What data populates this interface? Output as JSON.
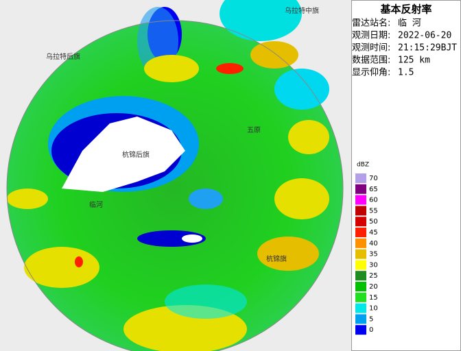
{
  "panel": {
    "title": "基本反射率",
    "info": [
      {
        "label": "雷达站名:",
        "value": "临 河"
      },
      {
        "label": "观测日期:",
        "value": "2022-06-20"
      },
      {
        "label": "观测时间:",
        "value": "21:15:29BJT"
      },
      {
        "label": "数据范围:",
        "value": "125 km"
      },
      {
        "label": "显示仰角:",
        "value": "1.5"
      }
    ]
  },
  "legend": {
    "unit": "dBZ",
    "items": [
      {
        "label": "70",
        "color": "#b4a0e8"
      },
      {
        "label": "65",
        "color": "#800080"
      },
      {
        "label": "60",
        "color": "#ff00ff"
      },
      {
        "label": "55",
        "color": "#c00000"
      },
      {
        "label": "50",
        "color": "#d40000"
      },
      {
        "label": "45",
        "color": "#ff2000"
      },
      {
        "label": "40",
        "color": "#ff9000"
      },
      {
        "label": "35",
        "color": "#e6be00"
      },
      {
        "label": "30",
        "color": "#ffff00"
      },
      {
        "label": "25",
        "color": "#1e8c1e"
      },
      {
        "label": "20",
        "color": "#00c000"
      },
      {
        "label": "15",
        "color": "#20e020"
      },
      {
        "label": "10",
        "color": "#00e8e8"
      },
      {
        "label": "5",
        "color": "#00a0f0"
      },
      {
        "label": "0",
        "color": "#0000f0"
      }
    ]
  },
  "map": {
    "places": [
      "乌拉特中旗",
      "乌拉特后旗",
      "杭锦后旗",
      "五原",
      "临河",
      "杭锦旗"
    ]
  }
}
